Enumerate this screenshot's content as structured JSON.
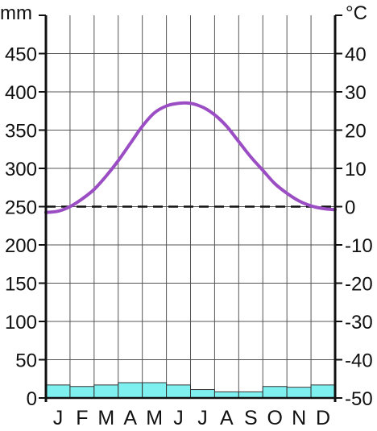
{
  "chart_data": {
    "type": "climate",
    "title": "",
    "categories": [
      "J",
      "F",
      "M",
      "A",
      "M",
      "J",
      "J",
      "A",
      "S",
      "O",
      "N",
      "D"
    ],
    "precipitation": {
      "type": "bar",
      "unit": "mm",
      "ylim": [
        0,
        500
      ],
      "ticks": [
        0,
        50,
        100,
        150,
        200,
        250,
        300,
        350,
        400,
        450
      ],
      "values": [
        17,
        15,
        17,
        20,
        20,
        17,
        11,
        8,
        8,
        15,
        14,
        17
      ],
      "color": "#7ff0f0"
    },
    "temperature": {
      "type": "line",
      "unit": "°C",
      "ylim": [
        -50,
        50
      ],
      "ticks": [
        -50,
        -40,
        -30,
        -20,
        -10,
        0,
        10,
        20,
        30,
        40
      ],
      "tick_labels": [
        "-50",
        "-40",
        "-30",
        "-20",
        "-10",
        "0",
        "10",
        "20",
        "30",
        "40"
      ],
      "x": [
        0,
        0.5,
        1,
        1.5,
        2,
        2.5,
        3,
        3.5,
        4,
        4.5,
        5,
        5.5,
        6,
        6.5,
        7,
        7.5,
        8,
        8.5,
        9,
        9.5,
        10,
        10.5,
        11,
        11.5,
        12
      ],
      "values": [
        -1.5,
        -1.2,
        0,
        2,
        4.5,
        8,
        12,
        16.5,
        21,
        24.5,
        26.3,
        27,
        27,
        26,
        24,
        21,
        17,
        13,
        9.5,
        6,
        3.5,
        1.5,
        0.2,
        -0.5,
        -0.8
      ],
      "color": "#9b4dc3"
    },
    "zero_line": {
      "value": 0,
      "style": "dashed"
    },
    "grid": true
  }
}
